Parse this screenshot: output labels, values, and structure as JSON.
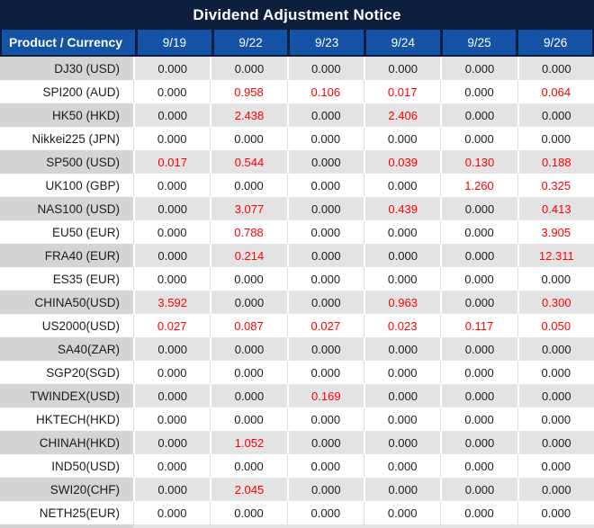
{
  "title": "Dividend Adjustment Notice",
  "chart_data": {
    "type": "table",
    "title": "Dividend Adjustment Notice",
    "columns": [
      "Product / Currency",
      "9/19",
      "9/22",
      "9/23",
      "9/24",
      "9/25",
      "9/26"
    ],
    "rows": [
      {
        "product": "DJ30 (USD)",
        "values": [
          "0.000",
          "0.000",
          "0.000",
          "0.000",
          "0.000",
          "0.000"
        ],
        "red_flags": [
          false,
          false,
          false,
          false,
          false,
          false
        ]
      },
      {
        "product": "SPI200 (AUD)",
        "values": [
          "0.000",
          "0.958",
          "0.106",
          "0.017",
          "0.000",
          "0.064"
        ],
        "red_flags": [
          false,
          true,
          true,
          true,
          false,
          true
        ]
      },
      {
        "product": "HK50 (HKD)",
        "values": [
          "0.000",
          "2.438",
          "0.000",
          "2.406",
          "0.000",
          "0.000"
        ],
        "red_flags": [
          false,
          true,
          false,
          true,
          false,
          false
        ]
      },
      {
        "product": "Nikkei225 (JPN)",
        "values": [
          "0.000",
          "0.000",
          "0.000",
          "0.000",
          "0.000",
          "0.000"
        ],
        "red_flags": [
          false,
          false,
          false,
          false,
          false,
          false
        ]
      },
      {
        "product": "SP500 (USD)",
        "values": [
          "0.017",
          "0.544",
          "0.000",
          "0.039",
          "0.130",
          "0.188"
        ],
        "red_flags": [
          true,
          true,
          false,
          true,
          true,
          true
        ]
      },
      {
        "product": "UK100 (GBP)",
        "values": [
          "0.000",
          "0.000",
          "0.000",
          "0.000",
          "1.260",
          "0.325"
        ],
        "red_flags": [
          false,
          false,
          false,
          false,
          true,
          true
        ]
      },
      {
        "product": "NAS100 (USD)",
        "values": [
          "0.000",
          "3.077",
          "0.000",
          "0.439",
          "0.000",
          "0.413"
        ],
        "red_flags": [
          false,
          true,
          false,
          true,
          false,
          true
        ]
      },
      {
        "product": "EU50 (EUR)",
        "values": [
          "0.000",
          "0.788",
          "0.000",
          "0.000",
          "0.000",
          "3.905"
        ],
        "red_flags": [
          false,
          true,
          false,
          false,
          false,
          true
        ]
      },
      {
        "product": "FRA40 (EUR)",
        "values": [
          "0.000",
          "0.214",
          "0.000",
          "0.000",
          "0.000",
          "12.311"
        ],
        "red_flags": [
          false,
          true,
          false,
          false,
          false,
          true
        ]
      },
      {
        "product": "ES35 (EUR)",
        "values": [
          "0.000",
          "0.000",
          "0.000",
          "0.000",
          "0.000",
          "0.000"
        ],
        "red_flags": [
          false,
          false,
          false,
          false,
          false,
          false
        ]
      },
      {
        "product": "CHINA50(USD)",
        "values": [
          "3.592",
          "0.000",
          "0.000",
          "0.963",
          "0.000",
          "0.300"
        ],
        "red_flags": [
          true,
          false,
          false,
          true,
          false,
          true
        ]
      },
      {
        "product": "US2000(USD)",
        "values": [
          "0.027",
          "0.087",
          "0.027",
          "0.023",
          "0.117",
          "0.050"
        ],
        "red_flags": [
          true,
          true,
          true,
          true,
          true,
          true
        ]
      },
      {
        "product": "SA40(ZAR)",
        "values": [
          "0.000",
          "0.000",
          "0.000",
          "0.000",
          "0.000",
          "0.000"
        ],
        "red_flags": [
          false,
          false,
          false,
          false,
          false,
          false
        ]
      },
      {
        "product": "SGP20(SGD)",
        "values": [
          "0.000",
          "0.000",
          "0.000",
          "0.000",
          "0.000",
          "0.000"
        ],
        "red_flags": [
          false,
          false,
          false,
          false,
          false,
          false
        ]
      },
      {
        "product": "TWINDEX(USD)",
        "values": [
          "0.000",
          "0.000",
          "0.169",
          "0.000",
          "0.000",
          "0.000"
        ],
        "red_flags": [
          false,
          false,
          true,
          false,
          false,
          false
        ]
      },
      {
        "product": "HKTECH(HKD)",
        "values": [
          "0.000",
          "0.000",
          "0.000",
          "0.000",
          "0.000",
          "0.000"
        ],
        "red_flags": [
          false,
          false,
          false,
          false,
          false,
          false
        ]
      },
      {
        "product": "CHINAH(HKD)",
        "values": [
          "0.000",
          "1.052",
          "0.000",
          "0.000",
          "0.000",
          "0.000"
        ],
        "red_flags": [
          false,
          true,
          false,
          false,
          false,
          false
        ]
      },
      {
        "product": "IND50(USD)",
        "values": [
          "0.000",
          "0.000",
          "0.000",
          "0.000",
          "0.000",
          "0.000"
        ],
        "red_flags": [
          false,
          false,
          false,
          false,
          false,
          false
        ]
      },
      {
        "product": "SWI20(CHF)",
        "values": [
          "0.000",
          "2.045",
          "0.000",
          "0.000",
          "0.000",
          "0.000"
        ],
        "red_flags": [
          false,
          true,
          false,
          false,
          false,
          false
        ]
      },
      {
        "product": "NETH25(EUR)",
        "values": [
          "0.000",
          "0.000",
          "0.000",
          "0.000",
          "0.000",
          "0.000"
        ],
        "red_flags": [
          false,
          false,
          false,
          false,
          false,
          false
        ]
      }
    ],
    "layout": {
      "row_striping": "odd rows gray, even rows white",
      "red_means": "non-zero adjustment values shown in red"
    }
  },
  "colors": {
    "navy": "#0c1f3d",
    "header_blue": "#1453a5",
    "red": "#fe0000",
    "text_black": "#1c1c1c",
    "row_gray_label": "#d4d4d4",
    "row_gray_value": "#e3e3e3",
    "row_white": "#ffffff",
    "sep_white": "#ffffff",
    "sep_gray": "#e0e0e0"
  }
}
